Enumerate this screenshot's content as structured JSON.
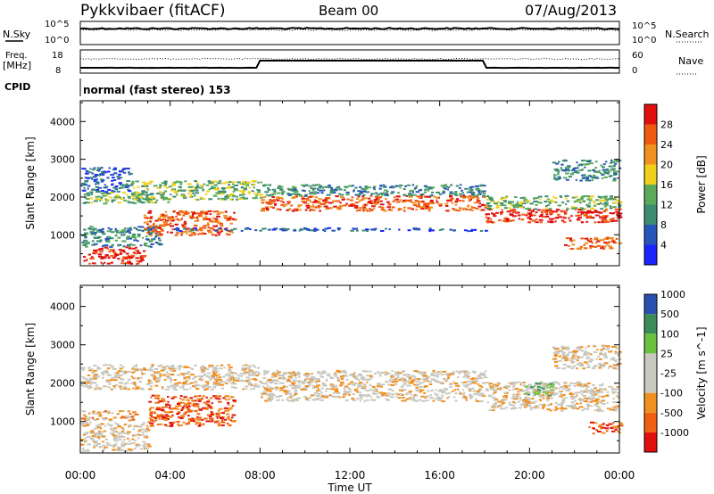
{
  "header": {
    "radar": "Pykkvibaer (fitACF)",
    "beam": "Beam 00",
    "date": "07/Aug/2013"
  },
  "strip": {
    "nsky_label": "N.Sky",
    "nsky_top": "10^5",
    "nsky_bottom": "10^0",
    "nsearch_label": "N.Search",
    "nsearch_top": "10^5",
    "nsearch_bottom": "10^0",
    "freq_label_1": "Freq.",
    "freq_label_2": "[MHz]",
    "freq_top": "18",
    "freq_bottom": "8",
    "nave_label": "Nave",
    "nave_top": "60",
    "nave_bottom": "0",
    "cpid_label": "CPID",
    "cpid_text": "normal (fast stereo) 153"
  },
  "colors": {
    "power": [
      "#1a24ff",
      "#2756b8",
      "#3c8c72",
      "#5aaa5a",
      "#f0d01a",
      "#f09020",
      "#f05a10",
      "#e01010"
    ],
    "velocity": [
      "#e01010",
      "#f06010",
      "#f09020",
      "#c8c8c0",
      "#c8c8c0",
      "#78c840",
      "#3c8c72",
      "#2040c0"
    ],
    "velocity_bar": [
      "#e01010",
      "#f06010",
      "#f09020",
      "#c8c8c0",
      "#c8c8c0",
      "#6cc040",
      "#3c8c5a",
      "#2a50b0"
    ]
  },
  "chart_data": [
    {
      "type": "heatmap",
      "title": "Power [dB]",
      "xlabel": "",
      "ylabel": "Slant Range [km]",
      "x_ticks": [
        "00:00",
        "04:00",
        "08:00",
        "12:00",
        "16:00",
        "20:00",
        "00:00"
      ],
      "xlim": [
        0,
        24
      ],
      "ylim": [
        180,
        4550
      ],
      "y_ticks": [
        1000,
        2000,
        3000,
        4000
      ],
      "colorbar": {
        "label": "Power [dB]",
        "ticks": [
          4,
          8,
          12,
          16,
          20,
          24,
          28
        ]
      },
      "bands": [
        {
          "t0": 0.0,
          "t1": 4.0,
          "r0": 1850,
          "r1": 2150,
          "level": 3
        },
        {
          "t0": 0.0,
          "t1": 2.2,
          "r0": 2150,
          "r1": 2800,
          "level": 1
        },
        {
          "t0": 2.2,
          "t1": 8.0,
          "r0": 1950,
          "r1": 2450,
          "level": 3
        },
        {
          "t0": 0.1,
          "t1": 2.8,
          "r0": 250,
          "r1": 700,
          "level": 7
        },
        {
          "t0": 0.0,
          "t1": 3.5,
          "r0": 700,
          "r1": 1250,
          "level": 2
        },
        {
          "t0": 2.8,
          "t1": 6.8,
          "r0": 1000,
          "r1": 1650,
          "level": 6
        },
        {
          "t0": 8.0,
          "t1": 18.0,
          "r0": 1650,
          "r1": 2050,
          "level": 6
        },
        {
          "t0": 8.0,
          "t1": 18.0,
          "r0": 2050,
          "r1": 2350,
          "level": 2
        },
        {
          "t0": 4.0,
          "t1": 18.0,
          "r0": 1120,
          "r1": 1200,
          "level": 1
        },
        {
          "t0": 18.0,
          "t1": 24.0,
          "r0": 1350,
          "r1": 1700,
          "level": 7
        },
        {
          "t0": 18.0,
          "t1": 24.0,
          "r0": 1700,
          "r1": 2050,
          "level": 3
        },
        {
          "t0": 21.0,
          "t1": 24.0,
          "r0": 2450,
          "r1": 3000,
          "level": 2
        },
        {
          "t0": 21.5,
          "t1": 24.0,
          "r0": 650,
          "r1": 950,
          "level": 6
        }
      ]
    },
    {
      "type": "heatmap",
      "title": "Velocity [m s^-1]",
      "xlabel": "Time UT",
      "ylabel": "Slant Range [km]",
      "x_ticks": [
        "00:00",
        "04:00",
        "08:00",
        "12:00",
        "16:00",
        "20:00",
        "00:00"
      ],
      "xlim": [
        0,
        24
      ],
      "ylim": [
        180,
        4550
      ],
      "y_ticks": [
        1000,
        2000,
        3000,
        4000
      ],
      "colorbar": {
        "label": "Velocity [m s^-1]",
        "ticks": [
          -1000,
          -500,
          -100,
          -25,
          25,
          100,
          500,
          1000
        ]
      },
      "bands": [
        {
          "t0": 0.0,
          "t1": 8.0,
          "r0": 1850,
          "r1": 2500,
          "level": 3
        },
        {
          "t0": 0.0,
          "t1": 3.0,
          "r0": 250,
          "r1": 1000,
          "level": 3
        },
        {
          "t0": 0.0,
          "t1": 2.5,
          "r0": 1050,
          "r1": 1300,
          "level": 2
        },
        {
          "t0": 3.0,
          "t1": 6.8,
          "r0": 900,
          "r1": 1700,
          "level": 1
        },
        {
          "t0": 8.0,
          "t1": 18.0,
          "r0": 1550,
          "r1": 2350,
          "level": 3
        },
        {
          "t0": 18.0,
          "t1": 24.0,
          "r0": 1300,
          "r1": 2050,
          "level": 3
        },
        {
          "t0": 19.5,
          "t1": 21.0,
          "r0": 1700,
          "r1": 2050,
          "level": 5
        },
        {
          "t0": 21.0,
          "t1": 24.0,
          "r0": 2400,
          "r1": 3000,
          "level": 3
        },
        {
          "t0": 22.5,
          "t1": 24.0,
          "r0": 700,
          "r1": 1000,
          "level": 1
        }
      ]
    }
  ],
  "axes": {
    "xlabel": "Time UT"
  }
}
